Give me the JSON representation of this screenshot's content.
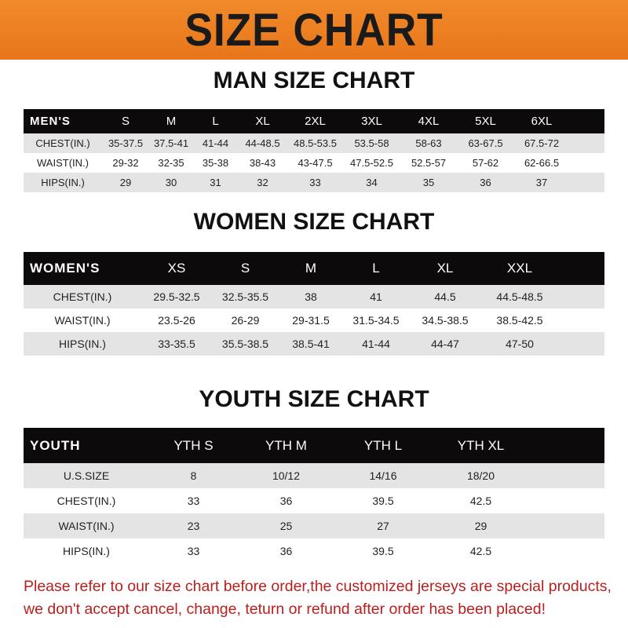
{
  "banner_title": "SIZE CHART",
  "colors": {
    "banner": "#e8761a",
    "header_row": "#0c0a0a",
    "stripe": "#e4e4e4",
    "note": "#b8201e"
  },
  "men": {
    "title": "MAN SIZE CHART",
    "header": [
      "MEN'S",
      "S",
      "M",
      "L",
      "XL",
      "2XL",
      "3XL",
      "4XL",
      "5XL",
      "6XL"
    ],
    "rows": [
      [
        "CHEST(IN.)",
        "35-37.5",
        "37.5-41",
        "41-44",
        "44-48.5",
        "48.5-53.5",
        "53.5-58",
        "58-63",
        "63-67.5",
        "67.5-72"
      ],
      [
        "WAIST(IN.)",
        "29-32",
        "32-35",
        "35-38",
        "38-43",
        "43-47.5",
        "47.5-52.5",
        "52.5-57",
        "57-62",
        "62-66.5"
      ],
      [
        "HIPS(IN.)",
        "29",
        "30",
        "31",
        "32",
        "33",
        "34",
        "35",
        "36",
        "37"
      ]
    ]
  },
  "women": {
    "title": "WOMEN SIZE CHART",
    "header": [
      "WOMEN'S",
      "XS",
      "S",
      "M",
      "L",
      "XL",
      "XXL"
    ],
    "rows": [
      [
        "CHEST(IN.)",
        "29.5-32.5",
        "32.5-35.5",
        "38",
        "41",
        "44.5",
        "44.5-48.5"
      ],
      [
        "WAIST(IN.)",
        "23.5-26",
        "26-29",
        "29-31.5",
        "31.5-34.5",
        "34.5-38.5",
        "38.5-42.5"
      ],
      [
        "HIPS(IN.)",
        "33-35.5",
        "35.5-38.5",
        "38.5-41",
        "41-44",
        "44-47",
        "47-50"
      ]
    ]
  },
  "youth": {
    "title": "YOUTH SIZE CHART",
    "header": [
      "YOUTH",
      "YTH S",
      "YTH M",
      "YTH L",
      "YTH XL"
    ],
    "rows": [
      [
        "U.S.SIZE",
        "8",
        "10/12",
        "14/16",
        "18/20"
      ],
      [
        "CHEST(IN.)",
        "33",
        "36",
        "39.5",
        "42.5"
      ],
      [
        "WAIST(IN.)",
        "23",
        "25",
        "27",
        "29"
      ],
      [
        "HIPS(IN.)",
        "33",
        "36",
        "39.5",
        "42.5"
      ]
    ]
  },
  "note": {
    "line1": "Please refer to our size chart before order,the customized jerseys are special products,",
    "line2": "we don't accept cancel, change, teturn or refund after order has been placed!"
  }
}
